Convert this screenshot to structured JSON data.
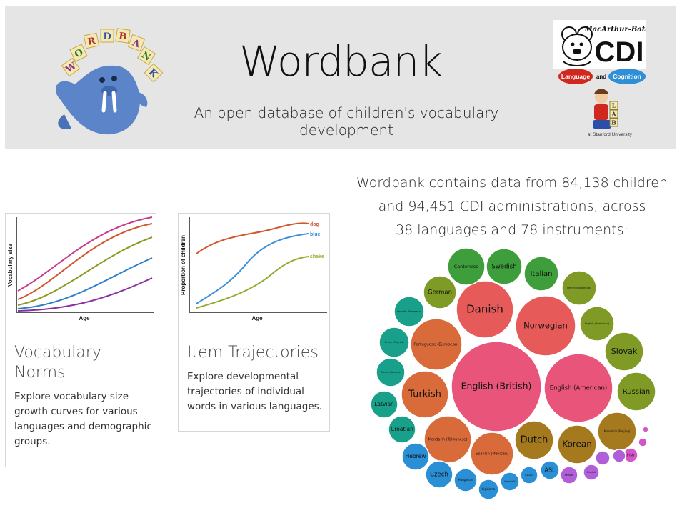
{
  "header": {
    "title": "Wordbank",
    "subtitle": "An open database of children's vocabulary development",
    "logo_blocks": [
      "W",
      "O",
      "R",
      "D",
      "B",
      "A",
      "N",
      "K"
    ],
    "cdi_logo_small": "MacArthur-Bates",
    "cdi_logo_big": "CDI",
    "langcog_left": "Language",
    "langcog_and": "and",
    "langcog_right": "Cognition",
    "langcog_blocks": [
      "L",
      "A",
      "B"
    ],
    "langcog_bottom": "at Stanford University"
  },
  "cards": [
    {
      "title_line1": "Vocabulary",
      "title_line2": "Norms",
      "desc_lines": [
        "Explore vocabulary size",
        "growth curves for various",
        "languages and demographic",
        "groups."
      ],
      "ylabel": "Vocabulary size",
      "xlabel": "Age"
    },
    {
      "title": "Item Trajectories",
      "desc_lines": [
        "Explore developmental",
        "trajectories of individual",
        "words in various languages."
      ],
      "ylabel": "Proportion of children",
      "xlabel": "Age",
      "series": [
        "dog",
        "blue",
        "shake"
      ]
    }
  ],
  "stats": {
    "line1": "Wordbank contains data from 84,138 children",
    "line2": "and 94,451 CDI administrations, across",
    "line3": "38 languages and 78 instruments:"
  },
  "languages": [
    "English (British)",
    "English (American)",
    "Danish",
    "Norwegian",
    "Portuguese (European)",
    "Turkish",
    "Mandarin (Taiwanese)",
    "Spanish (Mexican)",
    "Dutch",
    "Korean",
    "German",
    "Cantonese",
    "Swedish",
    "Italian",
    "French (Quebecois)",
    "English (Australian)",
    "Slovak",
    "Russian",
    "Mandarin (Beijing)",
    "Spanish (European)",
    "Greek (Cypriot)",
    "French (French)",
    "Latvian",
    "Croatian",
    "Hebrew",
    "Czech",
    "Hungarian",
    "Kigiriama",
    "Kiswahili",
    "Irish",
    "ASL",
    "Persian",
    "Finnish",
    "Catalan",
    "",
    "",
    "",
    ""
  ],
  "colors": {
    "header_bg": "#e5e5e5",
    "pink": "#e8547a",
    "red": "#e65a5a",
    "orange": "#d96b3a",
    "gold": "#a57a1f",
    "olive": "#809a26",
    "green": "#3f9e3c",
    "teal": "#19a08a",
    "blue": "#2b8fd6",
    "purple": "#b05fd8",
    "magenta": "#d455c8"
  }
}
